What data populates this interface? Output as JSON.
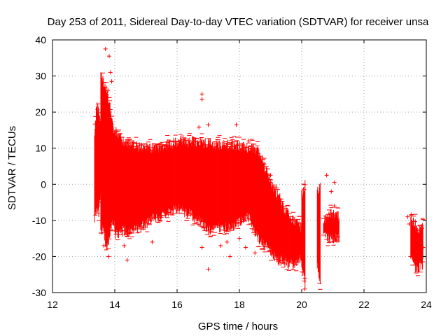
{
  "chart_data": {
    "type": "scatter",
    "title": "Day 253 of 2011, Sidereal Day-to-day VTEC variation (SDTVAR) for receiver unsa",
    "xlabel": "GPS time / hours",
    "ylabel": "SDTVAR / TECUs",
    "xlim": [
      12,
      24
    ],
    "ylim": [
      -30,
      40
    ],
    "x_ticks": [
      "12",
      "14",
      "16",
      "18",
      "20",
      "22",
      "24"
    ],
    "y_ticks": [
      "-30",
      "-20",
      "-10",
      "0",
      "10",
      "20",
      "30",
      "40"
    ],
    "grid": true,
    "marker": "+",
    "color": "#ff0000",
    "series": [
      {
        "name": "SDTVAR",
        "segments": [
          {
            "x_start": 13.35,
            "x_end": 13.55,
            "upper": [
              13,
              22,
              20,
              18
            ],
            "lower": [
              -10,
              -6,
              -8,
              -3
            ]
          },
          {
            "x_start": 13.55,
            "x_end": 14.0,
            "upper": [
              30,
              28,
              26,
              22,
              18,
              14
            ],
            "lower": [
              -13,
              -12,
              -18,
              -15,
              -10,
              -12
            ]
          },
          {
            "x_start": 14.0,
            "x_end": 15.5,
            "upper": [
              15,
              12,
              11,
              10.5,
              10,
              10,
              10.5
            ],
            "lower": [
              -14,
              -13,
              -13,
              -12,
              -11,
              -9,
              -9
            ]
          },
          {
            "x_start": 15.5,
            "x_end": 16.5,
            "upper": [
              10.5,
              11,
              11.5,
              12,
              11.5,
              12
            ],
            "lower": [
              -8,
              -8,
              -7,
              -7,
              -8,
              -8
            ]
          },
          {
            "x_start": 16.5,
            "x_end": 17.5,
            "upper": [
              12,
              11.5,
              11.5,
              11,
              11
            ],
            "lower": [
              -9,
              -10,
              -13,
              -12,
              -12
            ]
          },
          {
            "x_start": 17.5,
            "x_end": 18.3,
            "upper": [
              11,
              11,
              10.5,
              10
            ],
            "lower": [
              -12,
              -12,
              -10,
              -9
            ]
          },
          {
            "x_start": 18.3,
            "x_end": 18.8,
            "upper": [
              10,
              10,
              9,
              5
            ],
            "lower": [
              -8,
              -13,
              -15,
              -17
            ]
          },
          {
            "x_start": 18.8,
            "x_end": 19.3,
            "upper": [
              5,
              2,
              -2,
              -4
            ],
            "lower": [
              -17,
              -18,
              -20,
              -21
            ]
          },
          {
            "x_start": 19.3,
            "x_end": 20.0,
            "upper": [
              -5,
              -8,
              -10,
              -12
            ],
            "lower": [
              -21,
              -22,
              -22,
              -20
            ]
          },
          {
            "x_start": 20.0,
            "x_end": 20.12,
            "upper": [
              -3,
              0
            ],
            "lower": [
              -23,
              -28
            ]
          },
          {
            "x_start": 20.5,
            "x_end": 20.6,
            "upper": [
              -2,
              -1
            ],
            "lower": [
              -22,
              -28
            ]
          },
          {
            "x_start": 20.7,
            "x_end": 21.2,
            "upper": [
              -10,
              -8,
              -9
            ],
            "lower": [
              -14,
              -15,
              -15
            ]
          },
          {
            "x_start": 23.5,
            "x_end": 23.9,
            "upper": [
              -9,
              -11,
              -13,
              -12
            ],
            "lower": [
              -20,
              -23,
              -23,
              -22
            ]
          }
        ],
        "outliers": [
          [
            13.7,
            37.5
          ],
          [
            13.82,
            35.5
          ],
          [
            13.86,
            31
          ],
          [
            13.9,
            28.5
          ],
          [
            13.78,
            26
          ],
          [
            16.8,
            25
          ],
          [
            16.8,
            23.5
          ],
          [
            16.7,
            15.8
          ],
          [
            17.0,
            16.5
          ],
          [
            17.9,
            16.5
          ],
          [
            18.3,
            12
          ],
          [
            19.0,
            2.5
          ],
          [
            19.2,
            -1
          ],
          [
            18.5,
            -5
          ],
          [
            19.3,
            -10.5
          ],
          [
            19.1,
            -14
          ],
          [
            19.2,
            -19
          ],
          [
            17.6,
            -16
          ],
          [
            17.4,
            -17
          ],
          [
            16.8,
            -17.5
          ],
          [
            17.0,
            -23.5
          ],
          [
            17.7,
            -20
          ],
          [
            18.2,
            -17.5
          ],
          [
            18.5,
            -19
          ],
          [
            18.0,
            -15
          ],
          [
            15.2,
            -16
          ],
          [
            14.4,
            -21
          ],
          [
            13.65,
            -17
          ],
          [
            13.8,
            -20
          ],
          [
            14.3,
            -17
          ],
          [
            20.8,
            2.5
          ],
          [
            21.05,
            0.5
          ],
          [
            20.95,
            -2
          ],
          [
            21.05,
            -6
          ],
          [
            21.1,
            -15.5
          ],
          [
            20.8,
            -11
          ],
          [
            20.9,
            -12
          ],
          [
            20.1,
            -26
          ],
          [
            20.1,
            -29
          ],
          [
            23.4,
            -9
          ],
          [
            23.45,
            -11
          ],
          [
            23.9,
            -17.5
          ],
          [
            23.5,
            -20
          ]
        ]
      }
    ]
  }
}
